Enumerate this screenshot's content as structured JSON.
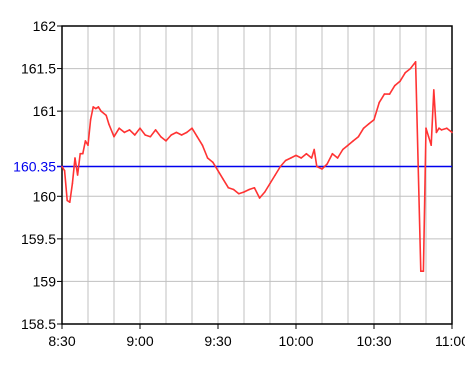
{
  "chart_data": {
    "type": "line",
    "title": "",
    "xlabel": "",
    "ylabel": "",
    "x_ticks": [
      "8:30",
      "9:00",
      "9:30",
      "10:00",
      "10:30",
      "11:00"
    ],
    "x_range": [
      "8:30",
      "11:00"
    ],
    "y_ticks": [
      "162",
      "161.5",
      "161",
      "160",
      "159.5",
      "159",
      "158.5"
    ],
    "ylim": [
      158.5,
      162
    ],
    "grid": true,
    "legend": "none",
    "reference_line": {
      "value": 160.35,
      "label": "160.35",
      "color": "#0000ee"
    },
    "series": [
      {
        "color": "#ff3333",
        "points": [
          [
            "8:30",
            160.35
          ],
          [
            "8:31",
            160.3
          ],
          [
            "8:32",
            159.95
          ],
          [
            "8:33",
            159.93
          ],
          [
            "8:34",
            160.15
          ],
          [
            "8:35",
            160.45
          ],
          [
            "8:36",
            160.25
          ],
          [
            "8:37",
            160.5
          ],
          [
            "8:38",
            160.5
          ],
          [
            "8:39",
            160.65
          ],
          [
            "8:40",
            160.6
          ],
          [
            "8:41",
            160.9
          ],
          [
            "8:42",
            161.05
          ],
          [
            "8:43",
            161.03
          ],
          [
            "8:44",
            161.05
          ],
          [
            "8:45",
            161.0
          ],
          [
            "8:47",
            160.95
          ],
          [
            "8:48",
            160.85
          ],
          [
            "8:50",
            160.7
          ],
          [
            "8:52",
            160.8
          ],
          [
            "8:54",
            160.75
          ],
          [
            "8:56",
            160.78
          ],
          [
            "8:58",
            160.72
          ],
          [
            "9:00",
            160.8
          ],
          [
            "9:02",
            160.72
          ],
          [
            "9:04",
            160.7
          ],
          [
            "9:06",
            160.78
          ],
          [
            "9:08",
            160.7
          ],
          [
            "9:10",
            160.65
          ],
          [
            "9:12",
            160.72
          ],
          [
            "9:14",
            160.75
          ],
          [
            "9:16",
            160.72
          ],
          [
            "9:18",
            160.75
          ],
          [
            "9:20",
            160.8
          ],
          [
            "9:22",
            160.7
          ],
          [
            "9:24",
            160.6
          ],
          [
            "9:26",
            160.45
          ],
          [
            "9:28",
            160.4
          ],
          [
            "9:30",
            160.3
          ],
          [
            "9:32",
            160.2
          ],
          [
            "9:34",
            160.1
          ],
          [
            "9:36",
            160.08
          ],
          [
            "9:38",
            160.03
          ],
          [
            "9:40",
            160.05
          ],
          [
            "9:42",
            160.08
          ],
          [
            "9:44",
            160.1
          ],
          [
            "9:46",
            159.98
          ],
          [
            "9:48",
            160.05
          ],
          [
            "9:50",
            160.15
          ],
          [
            "9:52",
            160.25
          ],
          [
            "9:54",
            160.35
          ],
          [
            "9:56",
            160.42
          ],
          [
            "9:58",
            160.45
          ],
          [
            "10:00",
            160.48
          ],
          [
            "10:02",
            160.45
          ],
          [
            "10:04",
            160.5
          ],
          [
            "10:06",
            160.45
          ],
          [
            "10:07",
            160.55
          ],
          [
            "10:08",
            160.35
          ],
          [
            "10:10",
            160.32
          ],
          [
            "10:12",
            160.38
          ],
          [
            "10:14",
            160.5
          ],
          [
            "10:16",
            160.45
          ],
          [
            "10:18",
            160.55
          ],
          [
            "10:20",
            160.6
          ],
          [
            "10:22",
            160.65
          ],
          [
            "10:24",
            160.7
          ],
          [
            "10:26",
            160.8
          ],
          [
            "10:28",
            160.85
          ],
          [
            "10:30",
            160.9
          ],
          [
            "10:32",
            161.1
          ],
          [
            "10:34",
            161.2
          ],
          [
            "10:36",
            161.2
          ],
          [
            "10:38",
            161.3
          ],
          [
            "10:40",
            161.35
          ],
          [
            "10:42",
            161.45
          ],
          [
            "10:44",
            161.5
          ],
          [
            "10:46",
            161.58
          ],
          [
            "10:47",
            160.35
          ],
          [
            "10:48",
            159.12
          ],
          [
            "10:49",
            159.12
          ],
          [
            "10:50",
            160.8
          ],
          [
            "10:51",
            160.7
          ],
          [
            "10:52",
            160.6
          ],
          [
            "10:53",
            161.25
          ],
          [
            "10:54",
            160.75
          ],
          [
            "10:55",
            160.8
          ],
          [
            "10:56",
            160.78
          ],
          [
            "10:58",
            160.8
          ],
          [
            "11:00",
            160.75
          ]
        ]
      }
    ]
  }
}
